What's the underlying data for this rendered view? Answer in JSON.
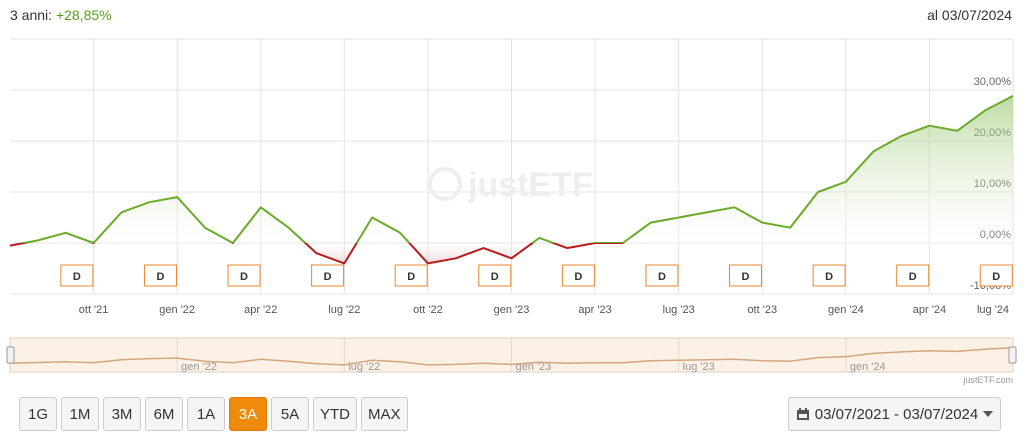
{
  "header": {
    "period_label": "3 anni:",
    "change": "+28,85%",
    "as_of": "al 03/07/2024"
  },
  "chart_data": {
    "type": "line",
    "watermark": "justETF",
    "x": [
      "2021-07",
      "2021-08",
      "2021-09",
      "2021-10",
      "2021-11",
      "2021-12",
      "2022-01",
      "2022-02",
      "2022-03",
      "2022-04",
      "2022-05",
      "2022-06",
      "2022-07",
      "2022-08",
      "2022-09",
      "2022-10",
      "2022-11",
      "2022-12",
      "2023-01",
      "2023-02",
      "2023-03",
      "2023-04",
      "2023-05",
      "2023-06",
      "2023-07",
      "2023-08",
      "2023-09",
      "2023-10",
      "2023-11",
      "2023-12",
      "2024-01",
      "2024-02",
      "2024-03",
      "2024-04",
      "2024-05",
      "2024-06",
      "2024-07"
    ],
    "series": [
      {
        "name": "Performance",
        "color": "#6aab2a",
        "negative_color": "#b71c1c",
        "values": [
          -0.5,
          0.5,
          2,
          0,
          6,
          8,
          9,
          3,
          0,
          7,
          3,
          -2,
          -4,
          5,
          2,
          -4,
          -3,
          -1,
          -3,
          1,
          -1,
          0,
          0,
          4,
          5,
          6,
          7,
          4,
          3,
          10,
          12,
          18,
          21,
          23,
          22,
          26,
          28.85
        ]
      }
    ],
    "ylim": [
      -10,
      40
    ],
    "yticks": [
      {
        "value": -10,
        "label": "-10,00%"
      },
      {
        "value": 0,
        "label": "0,00%"
      },
      {
        "value": 10,
        "label": "10,00%"
      },
      {
        "value": 20,
        "label": "20,00%"
      },
      {
        "value": 30,
        "label": "30,00%"
      }
    ],
    "xlim": [
      "2021-07",
      "2024-07"
    ],
    "xticks": [
      {
        "value": "2021-10",
        "label": "ott '21"
      },
      {
        "value": "2022-01",
        "label": "gen '22"
      },
      {
        "value": "2022-04",
        "label": "apr '22"
      },
      {
        "value": "2022-07",
        "label": "lug '22"
      },
      {
        "value": "2022-10",
        "label": "ott '22"
      },
      {
        "value": "2023-01",
        "label": "gen '23"
      },
      {
        "value": "2023-04",
        "label": "apr '23"
      },
      {
        "value": "2023-07",
        "label": "lug '23"
      },
      {
        "value": "2023-10",
        "label": "ott '23"
      },
      {
        "value": "2024-01",
        "label": "gen '24"
      },
      {
        "value": "2024-04",
        "label": "apr '24"
      },
      {
        "value": "2024-07",
        "label": "lug '24"
      }
    ],
    "grid": true,
    "annotations": [
      {
        "x": "2021-09",
        "label": "D"
      },
      {
        "x": "2021-12",
        "label": "D"
      },
      {
        "x": "2022-03",
        "label": "D"
      },
      {
        "x": "2022-06",
        "label": "D"
      },
      {
        "x": "2022-09",
        "label": "D"
      },
      {
        "x": "2022-12",
        "label": "D"
      },
      {
        "x": "2023-03",
        "label": "D"
      },
      {
        "x": "2023-06",
        "label": "D"
      },
      {
        "x": "2023-09",
        "label": "D"
      },
      {
        "x": "2023-12",
        "label": "D"
      },
      {
        "x": "2024-03",
        "label": "D"
      },
      {
        "x": "2024-06",
        "label": "D"
      }
    ],
    "navigator_xticks": [
      {
        "value": "2022-01",
        "label": "gen '22"
      },
      {
        "value": "2022-07",
        "label": "lug '22"
      },
      {
        "value": "2023-01",
        "label": "gen '23"
      },
      {
        "value": "2023-07",
        "label": "lug '23"
      },
      {
        "value": "2024-01",
        "label": "gen '24"
      }
    ],
    "credit": "justETF.com"
  },
  "range_buttons": [
    "1G",
    "1M",
    "3M",
    "6M",
    "1A",
    "3A",
    "5A",
    "YTD",
    "MAX"
  ],
  "active_button": 5,
  "date_range": "03/07/2021 - 03/07/2024"
}
